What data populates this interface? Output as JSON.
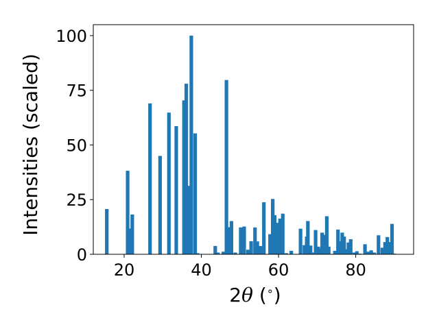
{
  "chart_data": {
    "type": "bar",
    "xlabel": {
      "prefix": "2",
      "symbol": "θ",
      "unit_open": " (",
      "unit": "∘",
      "unit_close": ")"
    },
    "ylabel": "Intensities (scaled)",
    "xlim": [
      12,
      95
    ],
    "ylim": [
      0,
      105
    ],
    "xticks": [
      20,
      40,
      60,
      80
    ],
    "yticks": [
      0,
      25,
      50,
      75,
      100
    ],
    "bar_color": "#1f77b4",
    "grid": false,
    "legend": "none",
    "x": [
      15.5,
      20.9,
      21.4,
      22.1,
      26.7,
      29.3,
      31.6,
      33.5,
      35.5,
      36.1,
      36.9,
      37.4,
      38.4,
      39.0,
      43.6,
      44.3,
      45.7,
      46.5,
      47.2,
      47.8,
      48.8,
      50.2,
      51.1,
      52.1,
      52.9,
      53.9,
      54.5,
      55.3,
      56.2,
      57.8,
      58.5,
      59.0,
      59.6,
      60.4,
      61.1,
      62.0,
      63.3,
      65.7,
      66.7,
      67.3,
      67.6,
      68.3,
      68.8,
      69.6,
      70.3,
      70.8,
      71.3,
      71.8,
      72.5,
      73.0,
      74.6,
      75.4,
      75.9,
      76.5,
      77.0,
      77.6,
      78.1,
      78.7,
      79.6,
      80.3,
      81.0,
      82.4,
      83.2,
      84.0,
      84.8,
      85.9,
      86.9,
      87.6,
      88.2,
      88.7,
      89.4,
      89.9
    ],
    "values": [
      20.7,
      38.2,
      11.8,
      18.2,
      69.0,
      45.0,
      64.8,
      58.6,
      70.4,
      78.0,
      31.3,
      100.0,
      55.3,
      0.5,
      3.8,
      0.8,
      1.2,
      79.7,
      12.4,
      15.2,
      0.8,
      12.3,
      12.7,
      2.1,
      6.0,
      12.3,
      5.9,
      3.8,
      23.8,
      9.2,
      25.3,
      17.9,
      14.4,
      16.3,
      18.6,
      0.5,
      1.6,
      11.7,
      4.2,
      8.1,
      15.2,
      4.0,
      0.8,
      11.1,
      3.5,
      2.6,
      9.9,
      8.9,
      17.4,
      3.5,
      1.6,
      11.3,
      5.9,
      9.9,
      8.1,
      2.3,
      5.4,
      6.9,
      0.8,
      1.4,
      0.3,
      4.6,
      1.2,
      1.8,
      0.8,
      8.7,
      3.0,
      5.6,
      7.9,
      5.6,
      13.9,
      0.3
    ]
  }
}
